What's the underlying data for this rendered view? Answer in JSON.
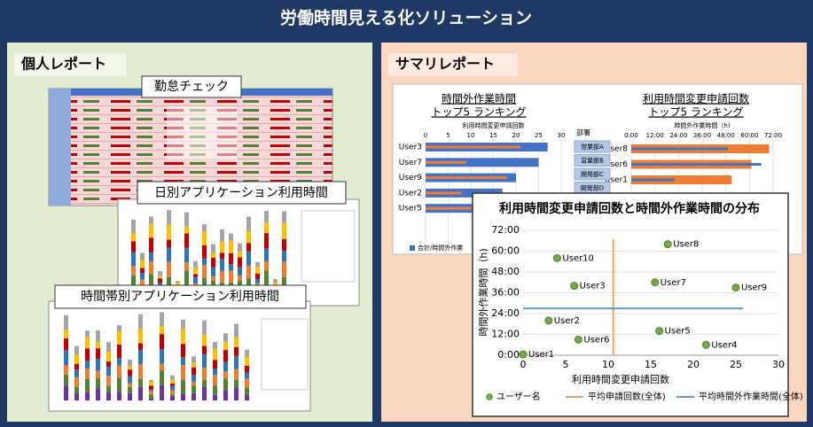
{
  "header": {
    "title": "労働時間見える化ソリューション"
  },
  "personal_report": {
    "title": "個人レポート",
    "items": [
      "勤怠チェック",
      "日別アプリケーション利用時間",
      "時間帯別アプリケーション利用時間"
    ]
  },
  "summary_report": {
    "title": "サマリレポート",
    "department_filter": {
      "label": "部署",
      "options": [
        "営業部A",
        "営業部B",
        "開発部C",
        "開発部D"
      ]
    }
  },
  "chart_data": [
    {
      "type": "bar",
      "orientation": "horizontal",
      "title": "時間外作業時間",
      "subtitle": "トップ5 ランキング",
      "xlabel": "利用時間変更申請回数",
      "categories": [
        "User3",
        "User7",
        "User9",
        "User2",
        "User5"
      ],
      "xlim": [
        0,
        30
      ],
      "xticks": [
        0,
        5,
        10,
        15,
        20,
        25,
        30
      ],
      "series": [
        {
          "name": "合計/時間外作業",
          "color": "#4472c4",
          "values": [
            27,
            25,
            20,
            17,
            16
          ]
        },
        {
          "color": "#ed7d31",
          "values": [
            21,
            9,
            18,
            8,
            12
          ]
        }
      ]
    },
    {
      "type": "bar",
      "orientation": "horizontal",
      "title": "利用時間変更申請回数",
      "subtitle": "トップ5 ランキング",
      "xlabel": "時間外作業時間（h)",
      "categories": [
        "User8",
        "User6",
        "User1"
      ],
      "xlim": [
        0,
        72
      ],
      "xticks": [
        {
          "value": 0,
          "label": "0:00"
        },
        {
          "value": 12,
          "label": "12:00"
        },
        {
          "value": 24,
          "label": "24:00"
        },
        {
          "value": 36,
          "label": "36:00"
        },
        {
          "value": 48,
          "label": "48:00"
        },
        {
          "value": 60,
          "label": "60:00"
        },
        {
          "value": 72,
          "label": "72:00"
        }
      ],
      "series": [
        {
          "color": "#ed7d31",
          "values": [
            70,
            61,
            51
          ]
        },
        {
          "color": "#4472c4",
          "values": [
            49,
            66,
            22
          ]
        }
      ]
    },
    {
      "type": "scatter",
      "title": "利用時間変更申請回数と時間外作業時間の分布",
      "xlabel": "利用時間変更申請回数",
      "ylabel": "時間外作業時間（h)",
      "xlim": [
        0,
        30
      ],
      "xticks": [
        0,
        5,
        10,
        15,
        20,
        25,
        30
      ],
      "ylim": [
        0,
        72
      ],
      "yticks": [
        {
          "value": 0,
          "label": "0:00"
        },
        {
          "value": 12,
          "label": "12:00"
        },
        {
          "value": 24,
          "label": "24:00"
        },
        {
          "value": 36,
          "label": "36:00"
        },
        {
          "value": 48,
          "label": "48:00"
        },
        {
          "value": 60,
          "label": "60:00"
        },
        {
          "value": 72,
          "label": "72:00"
        }
      ],
      "grid": true,
      "series": [
        {
          "name": "ユーザー名",
          "color": "#70ad47",
          "x": [
            0,
            3,
            6,
            21.5,
            16,
            6.5,
            15.5,
            17,
            25,
            4
          ],
          "y": [
            0.5,
            20,
            40,
            6,
            14,
            9,
            42,
            64,
            39,
            56
          ],
          "labels": [
            "User1",
            "User2",
            "User3",
            "User4",
            "User5",
            "User6",
            "User7",
            "User8",
            "User9",
            "User10"
          ]
        }
      ],
      "reference_lines": [
        {
          "name": "平均申請回数(全体)",
          "color": "#f4a460",
          "x": 10.6
        },
        {
          "name": "平均時間外作業時間(全体)",
          "color": "#5b9bd5",
          "y": 27
        }
      ]
    }
  ]
}
